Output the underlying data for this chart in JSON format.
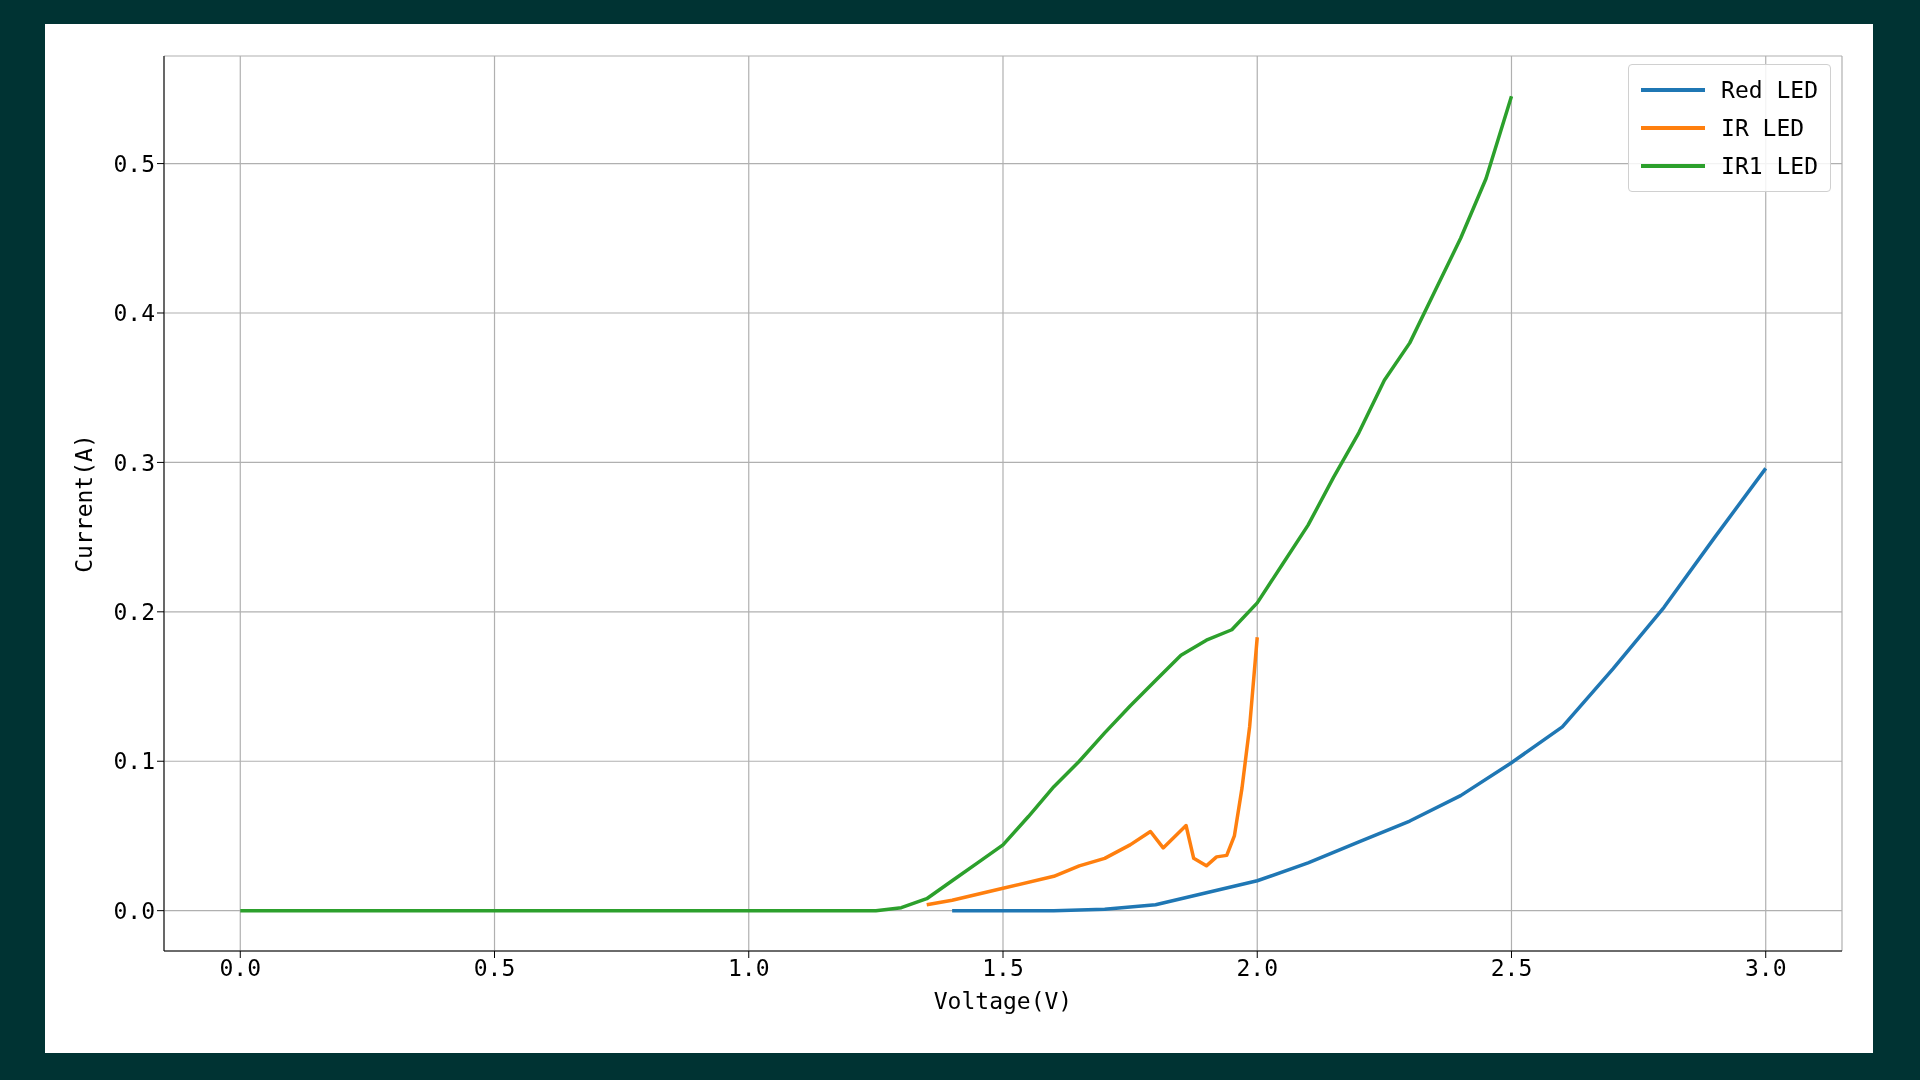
{
  "chart_data": {
    "type": "line",
    "xlabel": "Voltage(V)",
    "ylabel": "Current(A)",
    "xlim": [
      -0.15,
      3.15
    ],
    "ylim": [
      -0.027,
      0.572
    ],
    "xticks": [
      {
        "value": 0,
        "label": "0.0"
      },
      0.5,
      {
        "value": 1,
        "label": "1.0"
      },
      1.5,
      {
        "value": 2,
        "label": "2.0"
      },
      2.5,
      {
        "value": 3,
        "label": "3.0"
      }
    ],
    "yticks": [
      {
        "value": 0,
        "label": "0.0"
      },
      0.1,
      0.2,
      0.3,
      0.4,
      0.5
    ],
    "grid": true,
    "legend": "top right",
    "marker": "none",
    "line_style": "solid",
    "series": [
      {
        "name": "Red LED",
        "color": "#1f77b4",
        "x": [
          1.4,
          1.5,
          1.6,
          1.7,
          1.8,
          1.9,
          2.0,
          2.1,
          2.2,
          2.3,
          2.4,
          2.5,
          2.6,
          2.7,
          2.8,
          2.9,
          3.0
        ],
        "values": [
          0,
          0,
          0,
          0.001,
          0.004,
          0.012,
          0.02,
          0.032,
          0.046,
          0.06,
          0.077,
          0.099,
          0.123,
          0.162,
          0.203,
          0.25,
          0.296
        ]
      },
      {
        "name": "IR LED",
        "color": "#ff7f0e",
        "x": [
          1.35,
          1.4,
          1.5,
          1.6,
          1.65,
          1.7,
          1.75,
          1.79,
          1.815,
          1.86,
          1.875,
          1.9,
          1.92,
          1.94,
          1.955,
          1.97,
          1.985,
          2.0
        ],
        "values": [
          0.004,
          0.007,
          0.015,
          0.023,
          0.03,
          0.035,
          0.044,
          0.053,
          0.042,
          0.057,
          0.035,
          0.03,
          0.036,
          0.037,
          0.05,
          0.082,
          0.123,
          0.183
        ]
      },
      {
        "name": "IR1 LED",
        "color": "#2ca02c",
        "x": [
          0,
          0.5,
          1.0,
          1.25,
          1.3,
          1.35,
          1.4,
          1.45,
          1.5,
          1.55,
          1.6,
          1.65,
          1.7,
          1.75,
          1.8,
          1.85,
          1.9,
          1.95,
          2.0,
          2.05,
          2.1,
          2.15,
          2.2,
          2.25,
          2.3,
          2.35,
          2.4,
          2.45,
          2.5
        ],
        "values": [
          0,
          0,
          0,
          0,
          0.002,
          0.008,
          0.02,
          0.032,
          0.044,
          0.063,
          0.083,
          0.1,
          0.119,
          0.137,
          0.154,
          0.171,
          0.181,
          0.188,
          0.206,
          0.232,
          0.258,
          0.29,
          0.32,
          0.355,
          0.38,
          0.415,
          0.45,
          0.49,
          0.545
        ]
      }
    ]
  }
}
